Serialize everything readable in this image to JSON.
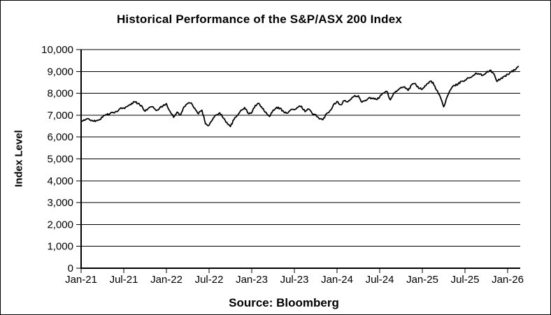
{
  "chart_data": {
    "type": "line",
    "title": "Historical Performance of the S&P/ASX 200 Index",
    "ylabel": "Index Level",
    "xlabel": "",
    "source": "Source: Bloomberg",
    "ylim": [
      0,
      10000
    ],
    "ytick_interval": 1000,
    "ytick_labels": [
      "0",
      "1,000",
      "2,000",
      "3,000",
      "4,000",
      "5,000",
      "6,000",
      "7,000",
      "8,000",
      "9,000",
      "10,000"
    ],
    "xtick_labels": [
      "Jan-21",
      "Jul-21",
      "Jan-22",
      "Jul-22",
      "Jan-23",
      "Jul-23",
      "Jan-24",
      "Jul-24",
      "Jan-25",
      "Jul-25",
      "Jan-26"
    ],
    "grid": "horizontal",
    "legend": "none",
    "line_color": "#000000",
    "background_color": "#ffffff",
    "series": [
      {
        "name": "S&P/ASX 200 Index",
        "frequency": "semi-monthly",
        "start": "Jan-21",
        "end": "Feb-26",
        "values": [
          6710,
          6760,
          6840,
          6770,
          6710,
          6790,
          6900,
          7030,
          7050,
          7120,
          7170,
          7310,
          7330,
          7400,
          7480,
          7620,
          7530,
          7440,
          7180,
          7330,
          7390,
          7230,
          7300,
          7420,
          7530,
          7180,
          6900,
          7140,
          7010,
          7390,
          7540,
          7560,
          7310,
          7060,
          7230,
          6600,
          6540,
          6810,
          7010,
          7110,
          6870,
          6670,
          6480,
          6800,
          6990,
          7230,
          7350,
          7080,
          7110,
          7450,
          7540,
          7300,
          7140,
          6940,
          7230,
          7360,
          7320,
          7150,
          7090,
          7250,
          7250,
          7360,
          7410,
          7160,
          7280,
          7080,
          7030,
          6830,
          6790,
          7060,
          7200,
          7480,
          7630,
          7480,
          7660,
          7610,
          7740,
          7900,
          7890,
          7590,
          7680,
          7800,
          7760,
          7720,
          7830,
          8010,
          8090,
          7700,
          8020,
          8140,
          8270,
          8300,
          8130,
          8390,
          8450,
          8220,
          8190,
          8350,
          8540,
          8500,
          8150,
          7860,
          7380,
          7850,
          8180,
          8360,
          8410,
          8550,
          8600,
          8700,
          8770,
          8930,
          8870,
          8830,
          8950,
          9050,
          8920,
          8540,
          8660,
          8770,
          8870,
          8980,
          9060,
          9230
        ]
      }
    ]
  }
}
